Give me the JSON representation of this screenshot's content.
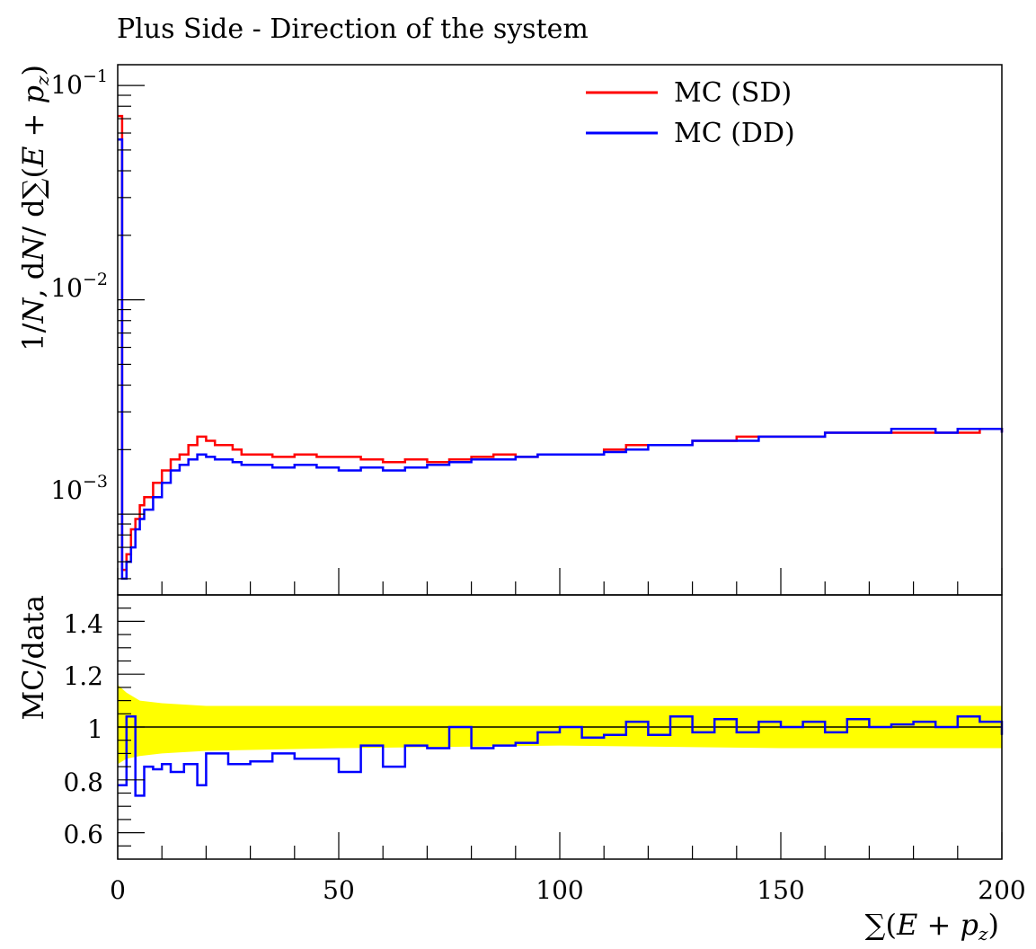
{
  "title": "Plus Side - Direction of the system",
  "chart_data": [
    {
      "type": "line",
      "panel": "main",
      "title": "Plus Side - Direction of the system",
      "ylabel": "1/N,dN/dΣ(E+p_z)",
      "ylabel_parts": {
        "pre": "1/",
        "N1": "N",
        "mid": ", d",
        "N2": "N",
        "d": "/ d",
        "sigma": "∑(",
        "E": "E",
        "plus": " + ",
        "p": "p",
        "sub": "z",
        "close": ")"
      },
      "y_scale": "log",
      "ylim": [
        0.00042,
        0.125
      ],
      "xlim": [
        0,
        200
      ],
      "y_ticks": [
        {
          "base": "10",
          "exp": "−1",
          "value": 0.1
        },
        {
          "base": "10",
          "exp": "−2",
          "value": 0.01
        },
        {
          "base": "10",
          "exp": "−3",
          "value": 0.001
        }
      ],
      "legend_position": "top-right",
      "series": [
        {
          "name": "MC (SD)",
          "color": "#ff0000",
          "x": [
            0,
            1,
            2,
            3,
            4,
            5,
            6,
            8,
            10,
            12,
            14,
            16,
            18,
            20,
            22,
            24,
            26,
            28,
            30,
            35,
            40,
            45,
            50,
            55,
            60,
            65,
            70,
            75,
            80,
            85,
            90,
            95,
            100,
            105,
            110,
            115,
            120,
            125,
            130,
            135,
            140,
            145,
            150,
            155,
            160,
            165,
            170,
            175,
            180,
            185,
            190,
            195,
            200
          ],
          "values": [
            0.072,
            0.00055,
            0.00065,
            0.00085,
            0.00095,
            0.0011,
            0.0012,
            0.0014,
            0.0016,
            0.0018,
            0.0019,
            0.0021,
            0.0023,
            0.0022,
            0.0021,
            0.0021,
            0.002,
            0.0019,
            0.0019,
            0.00185,
            0.0019,
            0.00185,
            0.00185,
            0.0018,
            0.00175,
            0.0018,
            0.00175,
            0.0018,
            0.00185,
            0.0019,
            0.00185,
            0.0019,
            0.0019,
            0.0019,
            0.002,
            0.0021,
            0.0021,
            0.0021,
            0.0022,
            0.0022,
            0.0023,
            0.0023,
            0.0023,
            0.0023,
            0.0024,
            0.0024,
            0.0024,
            0.0024,
            0.0024,
            0.0024,
            0.0024,
            0.0025,
            0.0024
          ]
        },
        {
          "name": "MC (DD)",
          "color": "#0000ff",
          "x": [
            0,
            1,
            2,
            3,
            4,
            5,
            6,
            8,
            10,
            12,
            14,
            16,
            18,
            20,
            22,
            24,
            26,
            28,
            30,
            35,
            40,
            45,
            50,
            55,
            60,
            65,
            70,
            75,
            80,
            85,
            90,
            95,
            100,
            105,
            110,
            115,
            120,
            125,
            130,
            135,
            140,
            145,
            150,
            155,
            160,
            165,
            170,
            175,
            180,
            185,
            190,
            195,
            200
          ],
          "values": [
            0.056,
            0.0005,
            0.0006,
            0.0007,
            0.00085,
            0.00095,
            0.00105,
            0.0012,
            0.0014,
            0.0016,
            0.0017,
            0.0018,
            0.0019,
            0.00185,
            0.0018,
            0.0018,
            0.00175,
            0.0017,
            0.0017,
            0.00165,
            0.0017,
            0.00165,
            0.0016,
            0.00165,
            0.0016,
            0.00165,
            0.0017,
            0.00175,
            0.0018,
            0.0018,
            0.00185,
            0.0019,
            0.0019,
            0.0019,
            0.00195,
            0.002,
            0.0021,
            0.0021,
            0.0022,
            0.0022,
            0.0022,
            0.0023,
            0.0023,
            0.0023,
            0.0024,
            0.0024,
            0.0024,
            0.0025,
            0.0025,
            0.0024,
            0.0025,
            0.0025,
            0.0024
          ]
        }
      ]
    },
    {
      "type": "line",
      "panel": "ratio",
      "ylabel": "MC/data",
      "xlabel_parts": {
        "sigma": "∑(",
        "E": "E",
        "plus": " + ",
        "p": "p",
        "sub": "z",
        "close": ")"
      },
      "xlim": [
        0,
        200
      ],
      "ylim": [
        0.5,
        1.5
      ],
      "x_ticks": [
        "0",
        "50",
        "100",
        "150",
        "200"
      ],
      "y_ticks": [
        "0.6",
        "0.8",
        "1",
        "1.2",
        "1.4"
      ],
      "reference_line": 1,
      "band": {
        "color": "#ffff00",
        "x": [
          0,
          2,
          5,
          10,
          20,
          50,
          100,
          150,
          200
        ],
        "low": [
          0.86,
          0.88,
          0.89,
          0.9,
          0.91,
          0.92,
          0.93,
          0.92,
          0.92
        ],
        "high": [
          1.16,
          1.13,
          1.1,
          1.09,
          1.08,
          1.08,
          1.08,
          1.08,
          1.08
        ]
      },
      "series": [
        {
          "name": "MC (DD)",
          "color": "#0000ff",
          "x": [
            0,
            2,
            4,
            6,
            8,
            10,
            12,
            15,
            18,
            20,
            25,
            30,
            35,
            40,
            45,
            50,
            55,
            60,
            65,
            70,
            75,
            80,
            85,
            90,
            95,
            100,
            105,
            110,
            115,
            120,
            125,
            130,
            135,
            140,
            145,
            150,
            155,
            160,
            165,
            170,
            175,
            180,
            185,
            190,
            195,
            200
          ],
          "values": [
            0.78,
            1.04,
            0.74,
            0.85,
            0.84,
            0.86,
            0.83,
            0.86,
            0.78,
            0.9,
            0.86,
            0.87,
            0.9,
            0.88,
            0.88,
            0.83,
            0.93,
            0.85,
            0.93,
            0.92,
            1.0,
            0.92,
            0.93,
            0.94,
            0.98,
            1.0,
            0.96,
            0.97,
            1.02,
            0.97,
            1.04,
            0.98,
            1.03,
            0.98,
            1.02,
            1.0,
            1.02,
            0.98,
            1.03,
            1.0,
            1.01,
            1.02,
            1.0,
            1.04,
            1.02,
            0.97
          ]
        }
      ]
    }
  ]
}
